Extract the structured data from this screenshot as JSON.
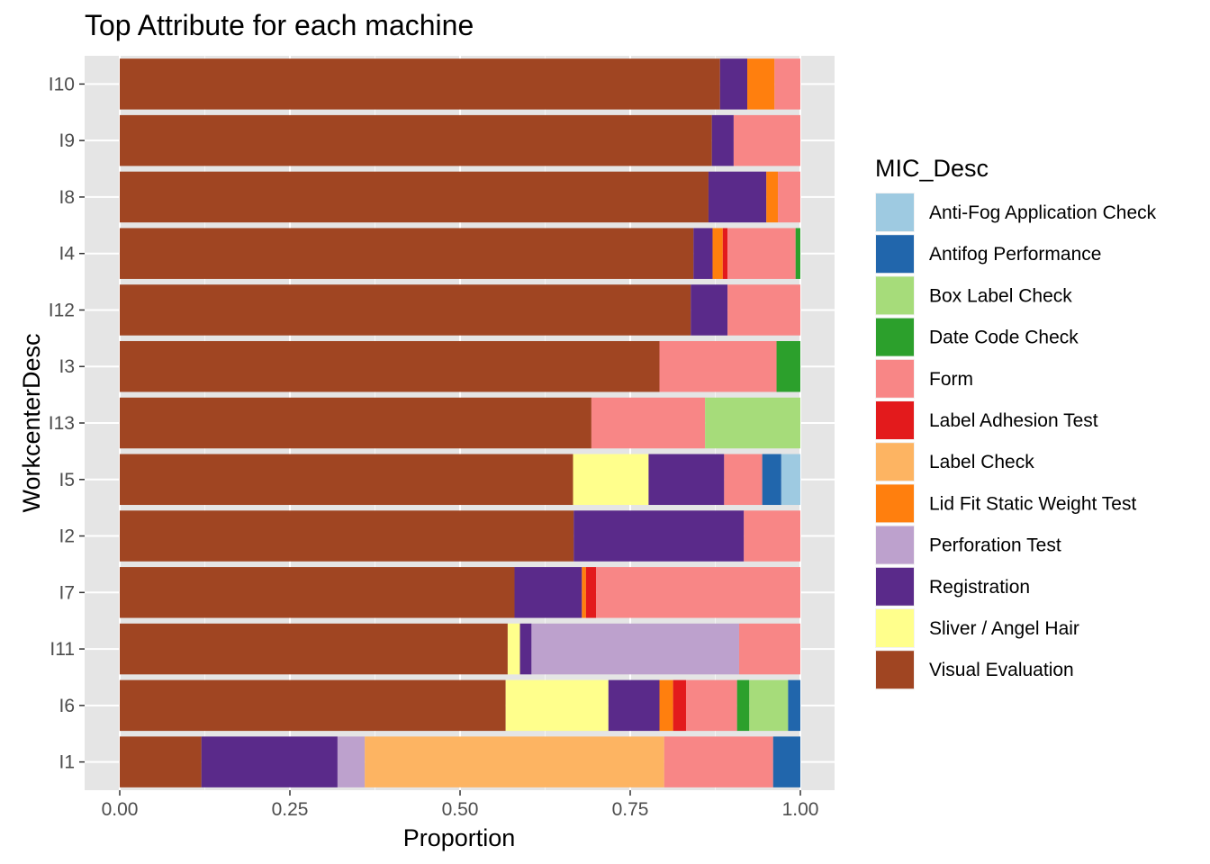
{
  "chart_data": {
    "type": "bar",
    "orientation": "horizontal",
    "stacked": true,
    "title": "Top Attribute for each machine",
    "xlabel": "Proportion",
    "ylabel": "WorkcenterDesc",
    "xlim": [
      0,
      1
    ],
    "x_ticks": [
      "0.00",
      "0.25",
      "0.50",
      "0.75",
      "1.00"
    ],
    "x_tick_values": [
      0,
      0.25,
      0.5,
      0.75,
      1
    ],
    "grid": true,
    "legend_title": "MIC_Desc",
    "legend_position": "right",
    "categories": [
      "I10",
      "I9",
      "I8",
      "I4",
      "I12",
      "I3",
      "I13",
      "I5",
      "I2",
      "I7",
      "I11",
      "I6",
      "I1"
    ],
    "series": [
      {
        "name": "Anti-Fog Application Check",
        "color": "#9ECAE1",
        "values": [
          0,
          0,
          0,
          0,
          0,
          0,
          0,
          0.028,
          0,
          0,
          0,
          0,
          0
        ]
      },
      {
        "name": "Antifog Performance",
        "color": "#2166AC",
        "values": [
          0,
          0,
          0,
          0,
          0,
          0,
          0,
          0.028,
          0,
          0,
          0,
          0.018,
          0.04
        ]
      },
      {
        "name": "Box Label Check",
        "color": "#A6DC7A",
        "values": [
          0,
          0,
          0,
          0,
          0,
          0,
          0.14,
          0,
          0,
          0,
          0,
          0.057,
          0
        ]
      },
      {
        "name": "Date Code Check",
        "color": "#2CA02C",
        "values": [
          0,
          0,
          0,
          0.007,
          0,
          0.035,
          0,
          0,
          0,
          0,
          0,
          0.018,
          0
        ]
      },
      {
        "name": "Form",
        "color": "#F88686",
        "values": [
          0.038,
          0.098,
          0.033,
          0.1,
          0.107,
          0.172,
          0.167,
          0.056,
          0.083,
          0.3,
          0.09,
          0.075,
          0.16
        ]
      },
      {
        "name": "Label Adhesion Test",
        "color": "#E31A1C",
        "values": [
          0,
          0,
          0,
          0.007,
          0,
          0,
          0,
          0,
          0,
          0.015,
          0,
          0.019,
          0
        ]
      },
      {
        "name": "Label Check",
        "color": "#FDB462",
        "values": [
          0,
          0,
          0,
          0,
          0,
          0,
          0,
          0,
          0,
          0,
          0,
          0,
          0.44
        ]
      },
      {
        "name": "Lid Fit Static Weight Test",
        "color": "#FF7F0E",
        "values": [
          0.04,
          0,
          0.017,
          0.015,
          0,
          0,
          0,
          0,
          0,
          0.006,
          0,
          0.02,
          0
        ]
      },
      {
        "name": "Perforation Test",
        "color": "#BDA1CD",
        "values": [
          0,
          0,
          0,
          0,
          0,
          0,
          0,
          0,
          0,
          0,
          0.305,
          0,
          0.04
        ]
      },
      {
        "name": "Registration",
        "color": "#5A2A8A",
        "values": [
          0.04,
          0.032,
          0.085,
          0.028,
          0.054,
          0,
          0,
          0.111,
          0.25,
          0.099,
          0.017,
          0.075,
          0.2
        ]
      },
      {
        "name": "Sliver / Angel Hair",
        "color": "#FFFF8C",
        "values": [
          0,
          0,
          0,
          0,
          0,
          0,
          0,
          0.111,
          0,
          0,
          0.018,
          0.151,
          0
        ]
      },
      {
        "name": "Visual Evaluation",
        "color": "#A04522",
        "values": [
          0.882,
          0.87,
          0.865,
          0.843,
          0.839,
          0.793,
          0.693,
          0.666,
          0.667,
          0.58,
          0.57,
          0.567,
          0.12
        ]
      }
    ]
  },
  "colors": {
    "panel_background": "#E5E5E5",
    "grid_line": "#FFFFFF",
    "tick_text": "#4D4D4D"
  }
}
